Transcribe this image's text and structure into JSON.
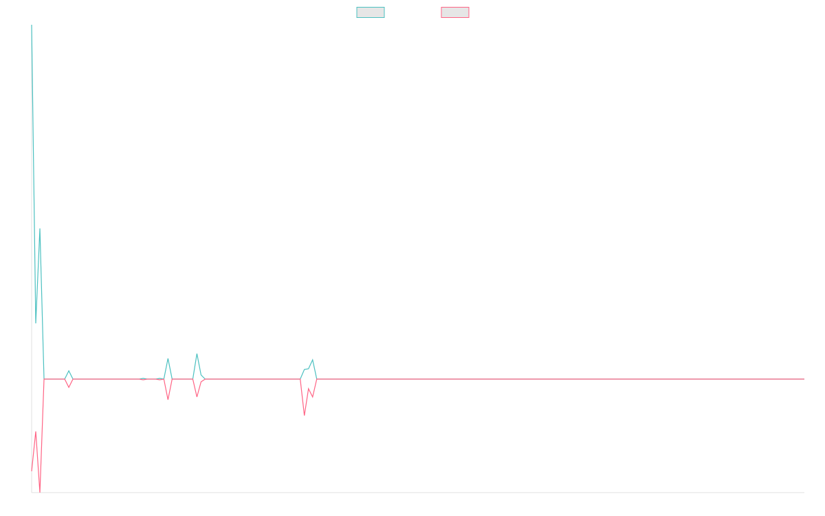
{
  "chart_data": {
    "type": "line",
    "legend": "top",
    "x": [
      0,
      1,
      2,
      3,
      8,
      9,
      10,
      26,
      27,
      28,
      30,
      31,
      32,
      33,
      34,
      39,
      40,
      41,
      42,
      65,
      66,
      67,
      68,
      69,
      187
    ],
    "xlim": [
      0,
      187
    ],
    "ylim": [
      -33,
      103
    ],
    "series": [
      {
        "color": "#4bc0c0",
        "values": [
          103,
          16.2,
          43.8,
          0,
          0,
          2.4,
          0,
          0,
          0.2,
          0,
          0,
          0.2,
          0,
          6,
          0,
          0,
          7.4,
          1.2,
          0,
          0,
          2.8,
          3,
          5.6,
          0,
          0
        ]
      },
      {
        "color": "#ff6384",
        "values": [
          -26.8,
          -15.2,
          -33,
          0,
          0,
          -2.4,
          0,
          0,
          -0.2,
          0,
          0,
          -0.2,
          0,
          -6,
          0,
          0,
          -5.2,
          -0.8,
          0,
          0,
          -10.6,
          -2.8,
          -5.2,
          0,
          0
        ]
      }
    ]
  }
}
